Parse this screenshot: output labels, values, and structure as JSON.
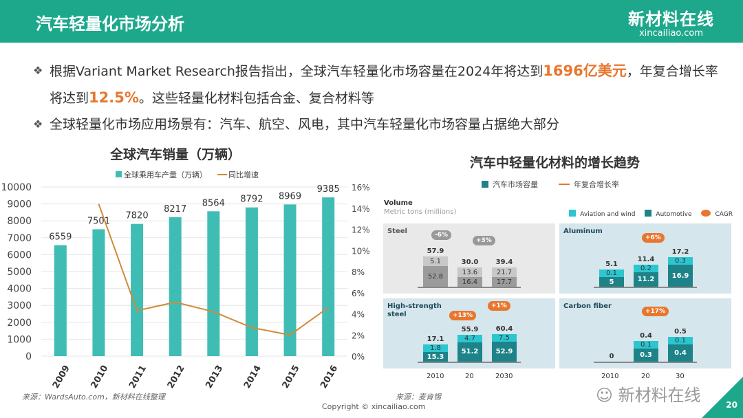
{
  "header": {
    "title": "汽车轻量化市场分析",
    "logo_cn": "新材料在线",
    "logo_en": "xincailiao.com"
  },
  "bullets": [
    {
      "icon": "diamond-bullet-icon",
      "pre": "根据Variant  Market  Research报告指出，全球汽车轻量化市场容量在2024年将达到",
      "hl1": "1696亿美元",
      "mid": "，年复合增长率将达到",
      "hl2": "12.5%",
      "post": "。这些轻量化材料包括合金、复合材料等"
    },
    {
      "icon": "diamond-bullet-icon",
      "text": "全球轻量化市场应用场景有：汽车、航空、风电，其中汽车轻量化市场容量占据绝大部分"
    }
  ],
  "chart_data": [
    {
      "type": "bar",
      "title": "全球汽车销量（万辆）",
      "categories": [
        "2009",
        "2010",
        "2011",
        "2012",
        "2013",
        "2014",
        "2015",
        "2016"
      ],
      "series": [
        {
          "name": "全球乘用车产量（万辆）",
          "type": "bar",
          "values": [
            6559,
            7501,
            7820,
            8217,
            8564,
            8792,
            8969,
            9385
          ],
          "color": "#3fbdb5"
        },
        {
          "name": "同比增速",
          "type": "line",
          "axis": "right",
          "values": [
            null,
            14.4,
            4.3,
            5.1,
            4.2,
            2.7,
            2.0,
            4.6
          ],
          "color": "#d08a3a"
        }
      ],
      "yticks": [
        "0",
        "1000",
        "2000",
        "3000",
        "4000",
        "5000",
        "6000",
        "7000",
        "8000",
        "9000",
        "10000"
      ],
      "y2ticks": [
        "0%",
        "2%",
        "4%",
        "6%",
        "8%",
        "10%",
        "12%",
        "14%",
        "16%"
      ],
      "ylim": [
        0,
        10000
      ],
      "y2lim": [
        0,
        16
      ]
    },
    {
      "type": "bar",
      "title": "汽车中轻量化材料的增长趋势",
      "legend_cn": [
        "汽车市场容量",
        "年复合增长率"
      ],
      "volume": "Volume",
      "unit": "Metric tons (millions)",
      "legend": [
        "Aviation and wind",
        "Automotive",
        "CAGR"
      ],
      "years": [
        "2010",
        "20",
        "2030"
      ],
      "years2": [
        "2010",
        "20",
        "30"
      ],
      "panels": [
        {
          "name": "Steel",
          "max": 60,
          "cagr": [
            "-6%",
            "+3%"
          ],
          "bars": [
            {
              "total": "57.9",
              "auto": 52.8,
              "avi": 5.1
            },
            {
              "total": "30.0",
              "auto": 16.4,
              "avi": 13.6
            },
            {
              "total": "39.4",
              "auto": 17.7,
              "avi": 21.7
            }
          ]
        },
        {
          "name": "Aluminum",
          "max": 18,
          "cagr": [
            "+6%"
          ],
          "bars": [
            {
              "total": "5.1",
              "auto": 5.0,
              "avi": 0.1
            },
            {
              "total": "11.4",
              "auto": 11.2,
              "avi": 0.2
            },
            {
              "total": "17.2",
              "auto": 16.9,
              "avi": 0.3
            }
          ]
        },
        {
          "name": "High-strength steel",
          "max": 62,
          "cagr": [
            "+13%",
            "+1%"
          ],
          "bars": [
            {
              "total": "17.1",
              "auto": 15.3,
              "avi": 1.8
            },
            {
              "total": "55.9",
              "auto": 51.2,
              "avi": 4.7
            },
            {
              "total": "60.4",
              "auto": 52.9,
              "avi": 7.5
            }
          ]
        },
        {
          "name": "Carbon fiber",
          "max": 0.55,
          "cagr": [
            "+17%"
          ],
          "bars": [
            {
              "total": "0",
              "auto": 0,
              "avi": 0
            },
            {
              "total": "0.4",
              "auto": 0.3,
              "avi": 0.1
            },
            {
              "total": "0.5",
              "auto": 0.4,
              "avi": 0.1
            }
          ]
        }
      ]
    }
  ],
  "sources": {
    "left": "来源：WardsAuto.com，新材料在线整理",
    "right": "来源：麦肯锡"
  },
  "copyright": "Copyright © xincailiao.com",
  "wechat": "新材料在线",
  "page_number": "20"
}
